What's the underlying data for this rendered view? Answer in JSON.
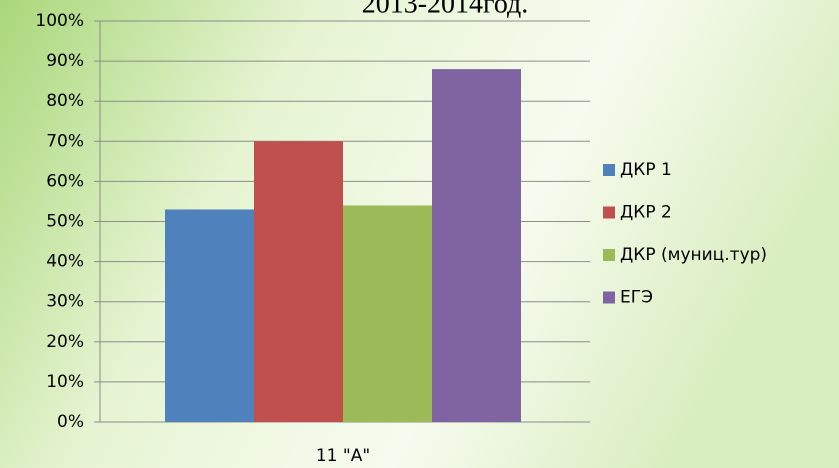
{
  "chart_data": {
    "type": "bar",
    "title": "2013-2014год.",
    "categories": [
      "11 \"А\""
    ],
    "series": [
      {
        "name": "ДКР 1",
        "color": "#4f81bd",
        "values": [
          53
        ]
      },
      {
        "name": "ДКР 2",
        "color": "#c0504d",
        "values": [
          70
        ]
      },
      {
        "name": "ДКР (муниц.тур)",
        "color": "#9bbb59",
        "values": [
          54
        ]
      },
      {
        "name": "ЕГЭ",
        "color": "#8064a2",
        "values": [
          88
        ]
      }
    ],
    "ylim": [
      0,
      100
    ],
    "yticks": [
      {
        "value": 0,
        "label": "0%"
      },
      {
        "value": 10,
        "label": "10%"
      },
      {
        "value": 20,
        "label": "20%"
      },
      {
        "value": 30,
        "label": "30%"
      },
      {
        "value": 40,
        "label": "40%"
      },
      {
        "value": 50,
        "label": "50%"
      },
      {
        "value": 60,
        "label": "60%"
      },
      {
        "value": 70,
        "label": "70%"
      },
      {
        "value": 80,
        "label": "80%"
      },
      {
        "value": 90,
        "label": "90%"
      },
      {
        "value": 100,
        "label": "100%"
      }
    ],
    "grid": true,
    "legend": "right"
  }
}
